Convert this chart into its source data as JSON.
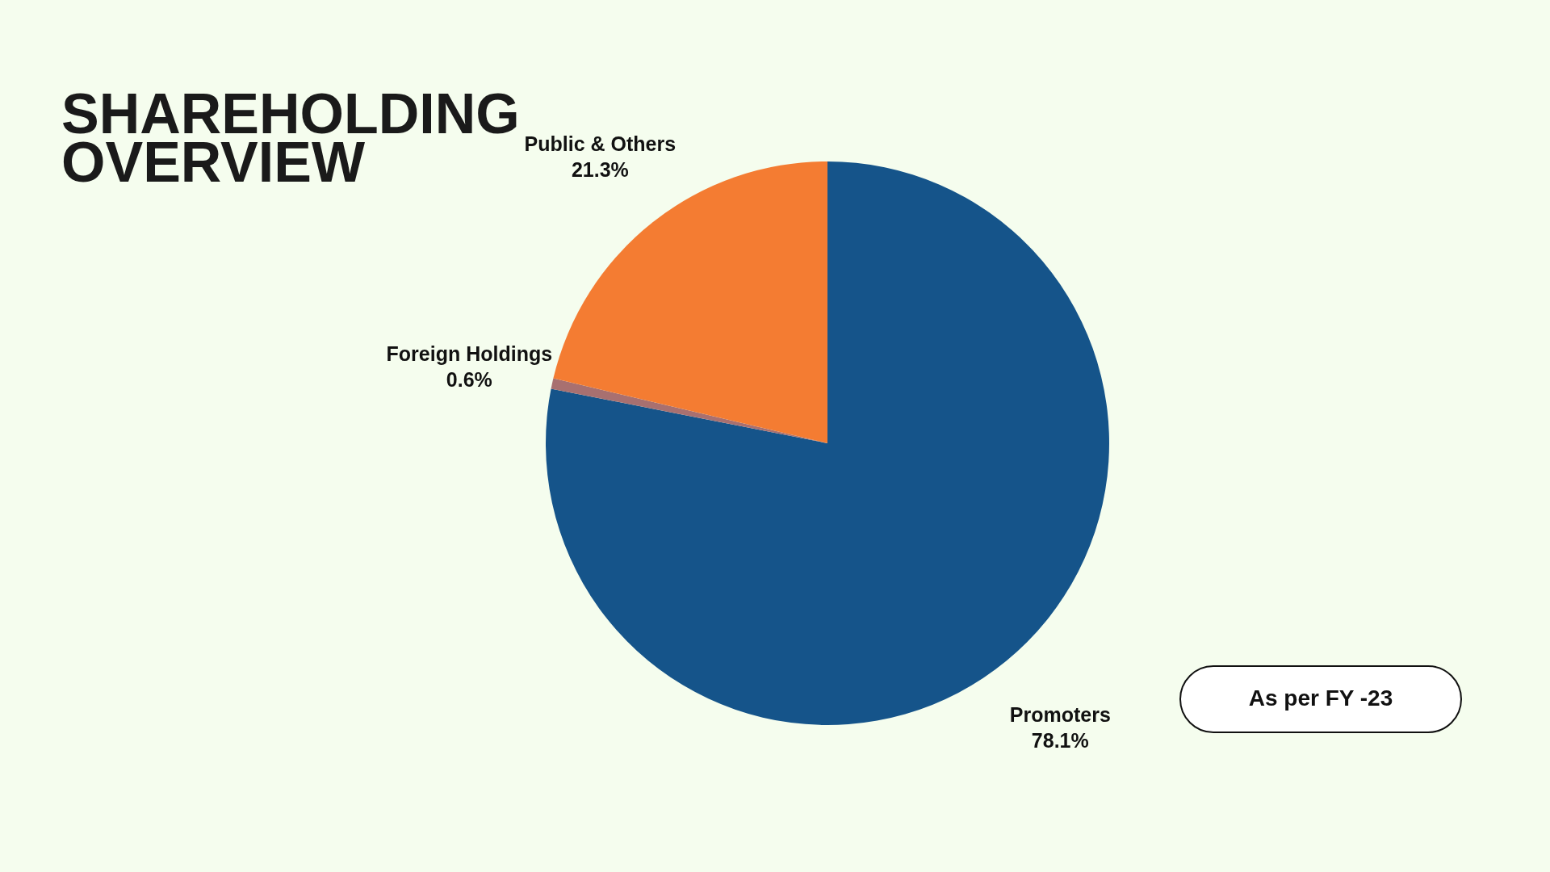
{
  "chart_data": {
    "type": "pie",
    "title": "SHAREHOLDING OVERVIEW",
    "categories": [
      "Promoters",
      "Foreign Holdings",
      "Public & Others"
    ],
    "values": [
      78.1,
      0.6,
      21.3
    ],
    "value_labels": [
      "78.1%",
      "0.6%",
      "21.3%"
    ],
    "colors": [
      "#15548a",
      "#a87070",
      "#f47c32"
    ],
    "annotations": [
      "As per FY -23"
    ]
  }
}
